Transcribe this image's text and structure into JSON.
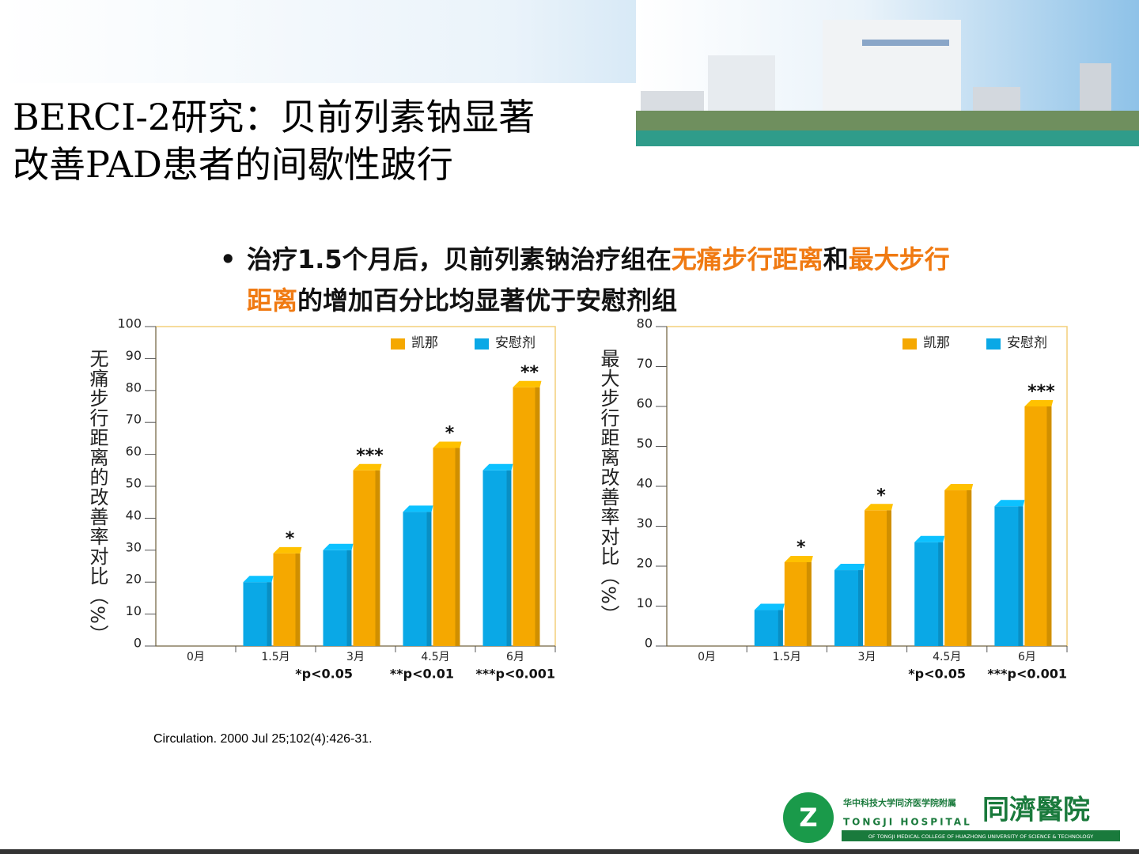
{
  "title_lines": [
    "BERCI-2研究：贝前列素钠显著",
    "改善PAD患者的间歇性跛行"
  ],
  "bullet": [
    {
      "text": "治疗1.5个月后，贝前列素钠治疗组在",
      "highlight": false
    },
    {
      "text": "无痛步行距离",
      "highlight": true
    },
    {
      "text": "和",
      "highlight": false
    },
    {
      "text": "最大步行距离",
      "highlight": true
    },
    {
      "text": "的增加百分比均显著优于安慰剂组",
      "highlight": false
    }
  ],
  "citation": "Circulation. 2000 Jul 25;102(4):426-31.",
  "logo": {
    "line1": "华中科技大学同济医学院附属",
    "line2": "TONGJI HOSPITAL",
    "name": "同濟醫院",
    "line3": "OF TONGJI MEDICAL COLLEGE OF HUAZHONG UNIVERSITY OF SCIENCE & TECHNOLOGY"
  },
  "chart_data": [
    {
      "type": "bar",
      "y_label": "无痛步行距离的改善率对比（%）",
      "categories": [
        "0月",
        "1.5月",
        "3月",
        "4.5月",
        "6月"
      ],
      "series": [
        {
          "name": "凯那",
          "color": "#f5a800",
          "values": [
            0,
            29,
            55,
            62,
            81
          ]
        },
        {
          "name": "安慰剂",
          "color": "#0aa8e6",
          "values": [
            0,
            20,
            30,
            42,
            55
          ]
        }
      ],
      "ylim": [
        0,
        100
      ],
      "yticks": [
        0,
        10,
        20,
        30,
        40,
        50,
        60,
        70,
        80,
        90,
        100
      ],
      "annotations": [
        {
          "category": "1.5月",
          "text": "*"
        },
        {
          "category": "3月",
          "text": "***"
        },
        {
          "category": "4.5月",
          "text": "*"
        },
        {
          "category": "6月",
          "text": "**"
        }
      ],
      "footnotes": [
        "*p<0.05",
        "**p<0.01",
        "***p<0.001"
      ],
      "legend": "upper right"
    },
    {
      "type": "bar",
      "y_label": "最大步行距离改善率对比（%）",
      "categories": [
        "0月",
        "1.5月",
        "3月",
        "4.5月",
        "6月"
      ],
      "series": [
        {
          "name": "凯那",
          "color": "#f5a800",
          "values": [
            0,
            21,
            34,
            39,
            60
          ]
        },
        {
          "name": "安慰剂",
          "color": "#0aa8e6",
          "values": [
            0,
            9,
            19,
            26,
            35
          ]
        }
      ],
      "ylim": [
        0,
        80
      ],
      "yticks": [
        0,
        10,
        20,
        30,
        40,
        50,
        60,
        70,
        80
      ],
      "annotations": [
        {
          "category": "1.5月",
          "text": "*"
        },
        {
          "category": "3月",
          "text": "*"
        },
        {
          "category": "6月",
          "text": "***"
        }
      ],
      "footnotes": [
        "*p<0.05",
        "***p<0.001"
      ],
      "legend": "upper right"
    }
  ]
}
